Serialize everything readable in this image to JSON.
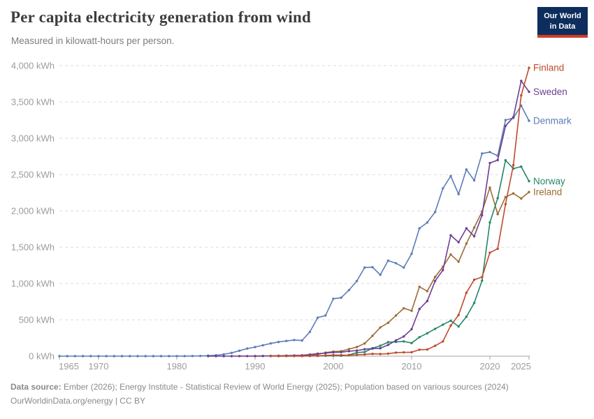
{
  "header": {
    "title": "Per capita electricity generation from wind",
    "subtitle": "Measured in kilowatt-hours per person.",
    "logo": {
      "line1": "Our World",
      "line2": "in Data",
      "bg_color": "#0d2e5c",
      "accent_color": "#d23b26"
    }
  },
  "footer": {
    "source_label": "Data source:",
    "source_text": " Ember (2026); Energy Institute - Statistical Review of World Energy (2025); Population based on various sources (2024)",
    "note_text": "OurWorldinData.org/energy | CC BY"
  },
  "chart_data": {
    "type": "line",
    "title": "Per capita electricity generation from wind",
    "subtitle": "Measured in kilowatt-hours per person.",
    "unit": "kWh",
    "ylabel": "",
    "xlabel": "",
    "grid": true,
    "legend_position": "end-of-line-labels",
    "x_axis": {
      "min": 1965,
      "max": 2025,
      "ticks": [
        1965,
        1970,
        1980,
        1990,
        2000,
        2010,
        2020,
        2025
      ]
    },
    "y_axis": {
      "min": 0,
      "max": 4000,
      "tick_step": 500,
      "tick_suffix": " kWh"
    },
    "series": [
      {
        "name": "Denmark",
        "color": "#5c7db7",
        "start_year": 1965,
        "values": [
          0,
          0,
          0,
          0,
          0,
          0,
          0,
          0,
          0,
          0,
          0,
          0,
          0,
          0,
          0,
          1,
          1,
          2,
          3,
          7,
          12,
          25,
          45,
          75,
          105,
          125,
          150,
          175,
          195,
          210,
          222,
          215,
          335,
          530,
          560,
          790,
          805,
          910,
          1035,
          1220,
          1225,
          1120,
          1315,
          1280,
          1220,
          1410,
          1760,
          1840,
          1985,
          2310,
          2480,
          2230,
          2570,
          2420,
          2790,
          2810,
          2760,
          3250,
          3280,
          3450,
          3240
        ]
      },
      {
        "name": "Ireland",
        "color": "#9b6c35",
        "start_year": 1990,
        "values": [
          2,
          3,
          4,
          5,
          6,
          7,
          11,
          15,
          23,
          49,
          63,
          68,
          97,
          125,
          175,
          280,
          395,
          460,
          560,
          660,
          625,
          955,
          895,
          1090,
          1230,
          1400,
          1300,
          1550,
          1770,
          1990,
          2320,
          1955,
          2190,
          2240,
          2170,
          2260
        ]
      },
      {
        "name": "Norway",
        "color": "#258769",
        "start_year": 1993,
        "values": [
          1,
          1,
          2,
          2,
          3,
          4,
          6,
          7,
          6,
          16,
          49,
          57,
          110,
          143,
          192,
          196,
          203,
          181,
          262,
          315,
          376,
          434,
          488,
          409,
          542,
          733,
          1039,
          1840,
          2176,
          2697,
          2582,
          2610,
          2410
        ]
      },
      {
        "name": "Sweden",
        "color": "#6d3e91",
        "start_year": 1984,
        "values": [
          0,
          0,
          0,
          0,
          1,
          1,
          1,
          2,
          3,
          5,
          8,
          10,
          12,
          22,
          35,
          41,
          52,
          55,
          68,
          77,
          95,
          104,
          109,
          155,
          217,
          271,
          371,
          649,
          759,
          1035,
          1185,
          1663,
          1568,
          1760,
          1650,
          1940,
          2660,
          2700,
          3170,
          3290,
          3790,
          3640
        ]
      },
      {
        "name": "Finland",
        "color": "#be4b2d",
        "start_year": 1992,
        "values": [
          1,
          1,
          2,
          2,
          2,
          3,
          5,
          9,
          15,
          14,
          12,
          18,
          23,
          32,
          29,
          35,
          49,
          52,
          54,
          88,
          91,
          142,
          203,
          421,
          566,
          873,
          1052,
          1088,
          1425,
          1479,
          2092,
          2630,
          3590,
          3970
        ]
      }
    ]
  },
  "style_colors": {
    "gridline": "#dbdbdb",
    "axis_line": "#a3a3a3",
    "tick_text": "#9c9c9c"
  }
}
